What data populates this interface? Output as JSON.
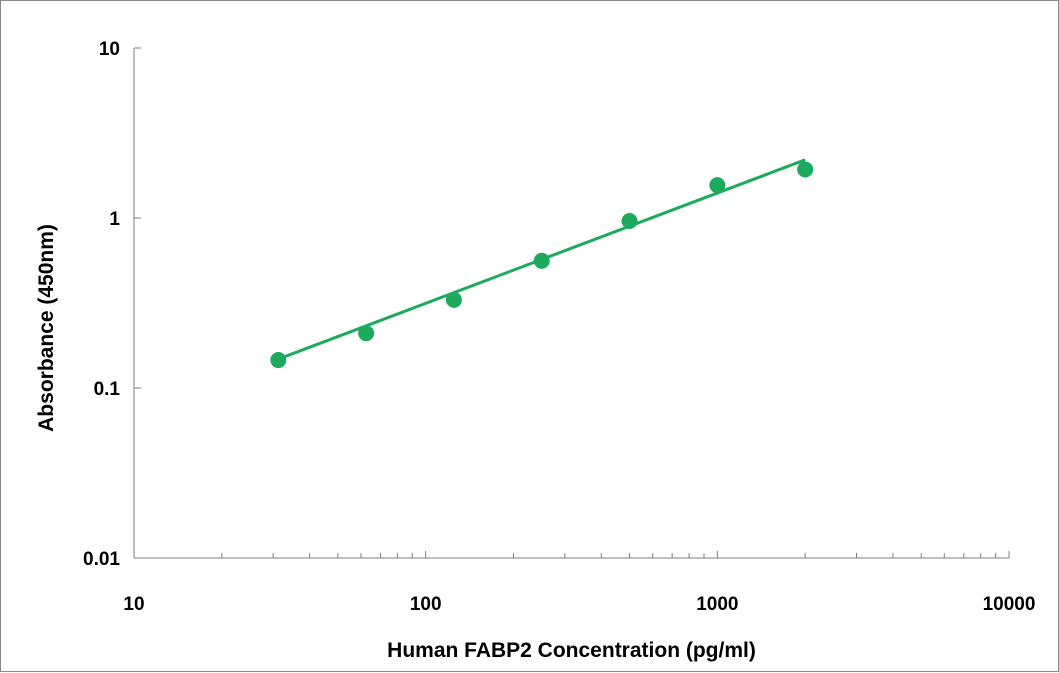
{
  "chart_data": {
    "type": "scatter",
    "title": "",
    "xlabel": "Human FABP2 Concentration (pg/ml)",
    "ylabel": "Absorbance (450nm)",
    "x_scale": "log",
    "y_scale": "log",
    "xlim": [
      10,
      10000
    ],
    "ylim": [
      0.01,
      10
    ],
    "x_ticks": [
      "10",
      "100",
      "1000",
      "10000"
    ],
    "y_ticks": [
      "10",
      "1",
      "0.1",
      "0.01"
    ],
    "grid": false,
    "legend": "none",
    "series": [
      {
        "x": [
          31.25,
          62.5,
          125,
          250,
          500,
          1000,
          2000
        ],
        "y": [
          0.146,
          0.21,
          0.33,
          0.56,
          0.96,
          1.56,
          1.93
        ]
      }
    ],
    "trendline": {
      "x": [
        31.25,
        2000
      ],
      "y": [
        0.148,
        2.2
      ]
    },
    "colors": {
      "marker": "#1daa5c",
      "line": "#1daa5c",
      "axis": "#7f7f7f"
    }
  }
}
